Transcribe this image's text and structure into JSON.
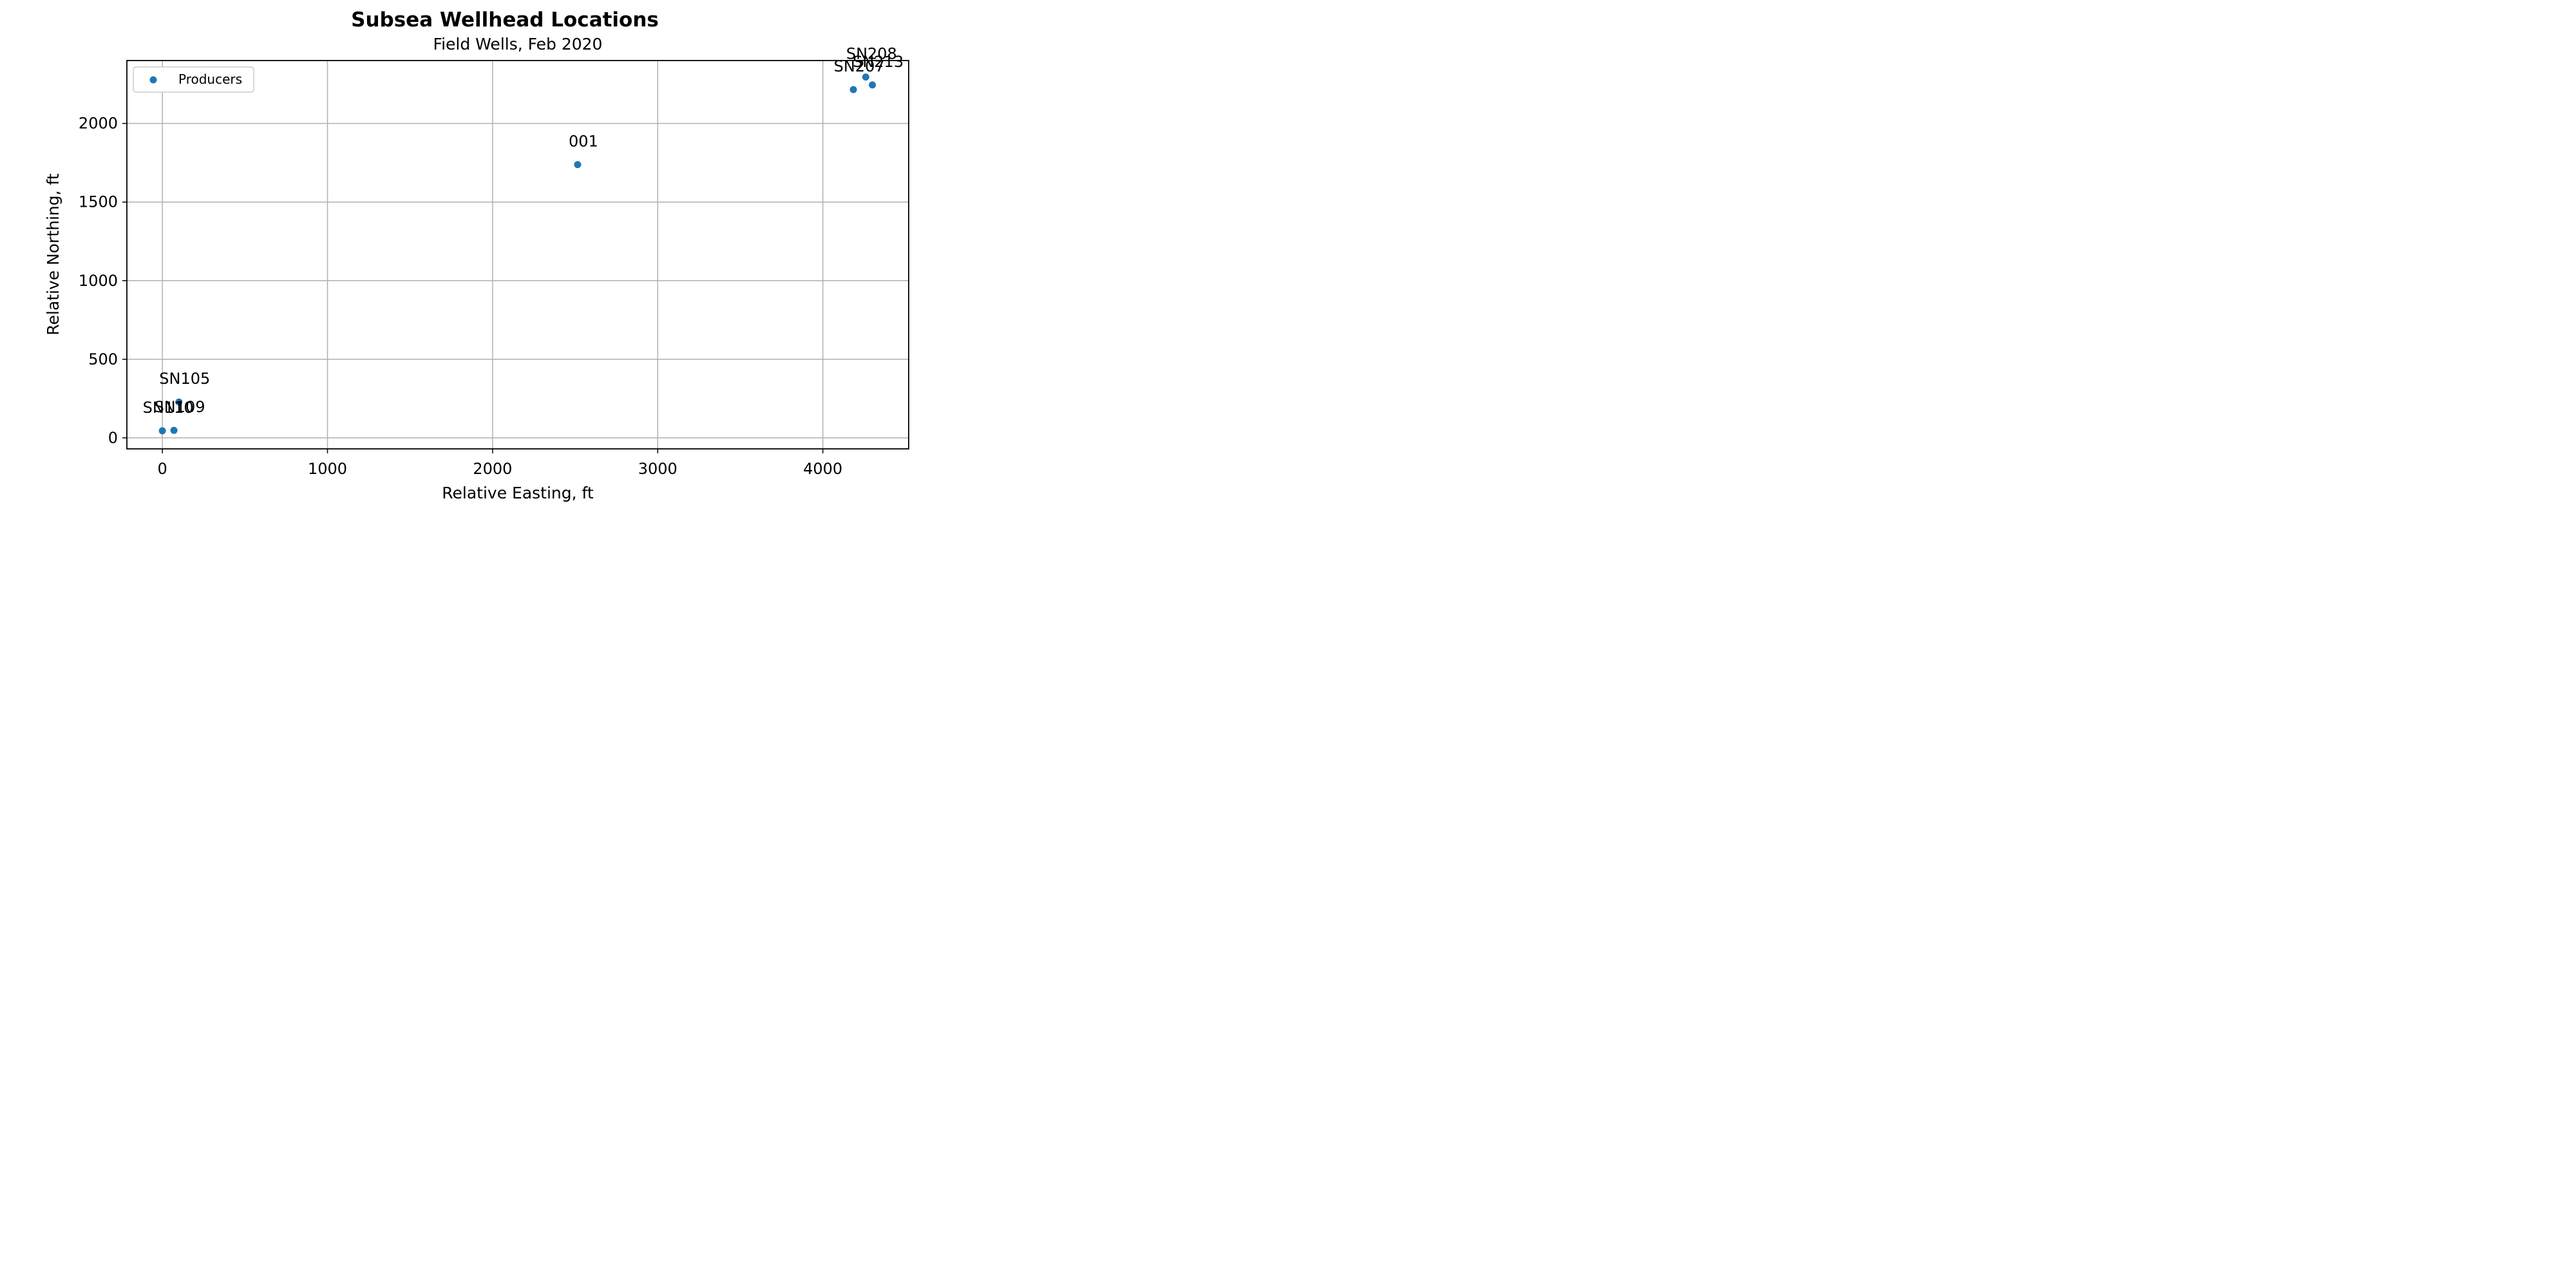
{
  "chart_data": {
    "type": "scatter",
    "title": "Subsea Wellhead Locations",
    "subtitle": "Field Wells, Feb 2020",
    "xlabel": "Relative Easting, ft",
    "ylabel": "Relative Northing, ft",
    "xlim": [
      -215,
      4520
    ],
    "ylim": [
      -70,
      2400
    ],
    "xticks": [
      0,
      1000,
      2000,
      3000,
      4000
    ],
    "yticks": [
      0,
      500,
      1000,
      1500,
      2000
    ],
    "grid": true,
    "legend_position": "top-left",
    "series": [
      {
        "name": "Producers",
        "color": "#1f77b4",
        "points": [
          {
            "label": "SN110",
            "x": 0,
            "y": 45
          },
          {
            "label": "SN109",
            "x": 70,
            "y": 48
          },
          {
            "label": "SN105",
            "x": 100,
            "y": 228
          },
          {
            "label": "001",
            "x": 2515,
            "y": 1738
          },
          {
            "label": "SN207",
            "x": 4185,
            "y": 2215
          },
          {
            "label": "SN208",
            "x": 4260,
            "y": 2295
          },
          {
            "label": "SN213",
            "x": 4300,
            "y": 2245
          }
        ]
      }
    ]
  }
}
